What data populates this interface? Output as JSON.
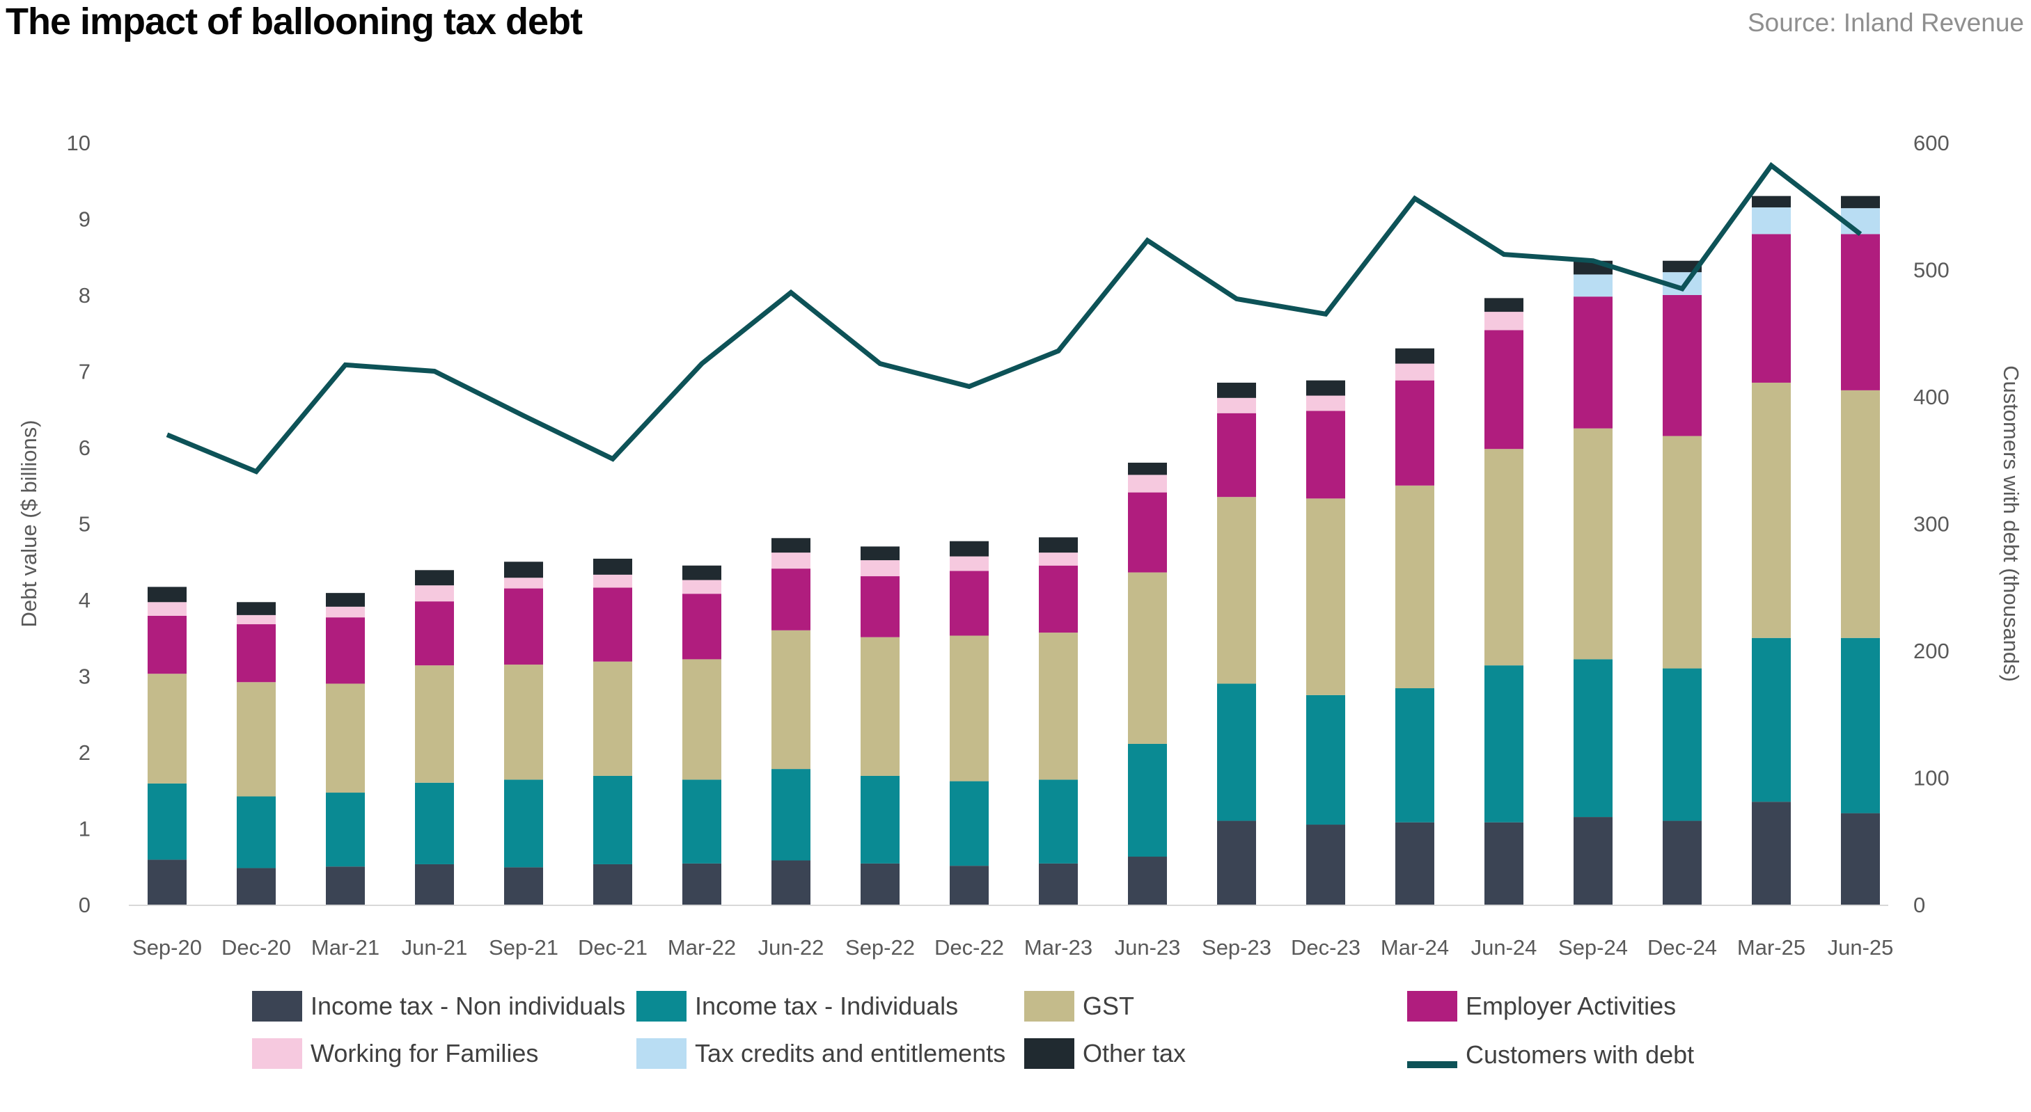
{
  "header": {
    "title": "The impact of ballooning tax debt",
    "source": "Source: Inland Revenue"
  },
  "chart_data": {
    "type": "bar",
    "subtype": "stacked-bars-with-line-overlay",
    "title": "The impact of ballooning tax debt",
    "categories": [
      "Sep-20",
      "Dec-20",
      "Mar-21",
      "Jun-21",
      "Sep-21",
      "Dec-21",
      "Mar-22",
      "Jun-22",
      "Sep-22",
      "Dec-22",
      "Mar-23",
      "Jun-23",
      "Sep-23",
      "Dec-23",
      "Mar-24",
      "Jun-24",
      "Sep-24",
      "Dec-24",
      "Mar-25",
      "Jun-25"
    ],
    "series": [
      {
        "name": "Income tax - Non individuals",
        "color": "#3b4454",
        "values": [
          0.59,
          0.48,
          0.5,
          0.53,
          0.49,
          0.53,
          0.54,
          0.58,
          0.54,
          0.51,
          0.54,
          0.63,
          1.1,
          1.05,
          1.08,
          1.08,
          1.15,
          1.1,
          1.35,
          1.2
        ]
      },
      {
        "name": "Income tax - Individuals",
        "color": "#0a8a93",
        "values": [
          1.0,
          0.94,
          0.97,
          1.07,
          1.15,
          1.16,
          1.1,
          1.2,
          1.15,
          1.11,
          1.1,
          1.48,
          1.8,
          1.7,
          1.76,
          2.06,
          2.07,
          2.0,
          2.15,
          2.3
        ]
      },
      {
        "name": "GST",
        "color": "#c4bb8b",
        "values": [
          1.44,
          1.5,
          1.43,
          1.54,
          1.51,
          1.5,
          1.58,
          1.82,
          1.82,
          1.91,
          1.93,
          2.25,
          2.45,
          2.58,
          2.66,
          2.84,
          3.03,
          3.05,
          3.35,
          3.25
        ]
      },
      {
        "name": "Employer Activities",
        "color": "#b01d7e",
        "values": [
          0.76,
          0.76,
          0.87,
          0.84,
          1.0,
          0.97,
          0.86,
          0.81,
          0.8,
          0.85,
          0.88,
          1.05,
          1.1,
          1.15,
          1.38,
          1.56,
          1.73,
          1.85,
          1.95,
          2.05
        ]
      },
      {
        "name": "Working for Families",
        "color": "#f6c9df",
        "values": [
          0.18,
          0.12,
          0.14,
          0.21,
          0.14,
          0.17,
          0.18,
          0.21,
          0.21,
          0.19,
          0.17,
          0.23,
          0.2,
          0.2,
          0.22,
          0.24,
          0,
          0,
          0,
          0
        ]
      },
      {
        "name": "Tax credits and entitlements",
        "color": "#b9ddf3",
        "values": [
          0,
          0,
          0,
          0,
          0,
          0,
          0,
          0,
          0,
          0,
          0,
          0,
          0,
          0,
          0,
          0,
          0.29,
          0.3,
          0.35,
          0.34
        ]
      },
      {
        "name": "Other tax",
        "color": "#202a30",
        "values": [
          0.2,
          0.17,
          0.18,
          0.2,
          0.21,
          0.21,
          0.19,
          0.19,
          0.18,
          0.2,
          0.2,
          0.16,
          0.2,
          0.2,
          0.2,
          0.18,
          0.18,
          0.15,
          0.15,
          0.16
        ]
      }
    ],
    "line_series": {
      "name": "Customers with debt",
      "color": "#0d5257",
      "axis": "right",
      "values": [
        370,
        341,
        425,
        420,
        385,
        351,
        426,
        482,
        426,
        408,
        436,
        523,
        477,
        465,
        556,
        512,
        507,
        485,
        582,
        528
      ]
    },
    "left_axis": {
      "label": "Debt value ($ billions)",
      "min": 0,
      "max": 10,
      "step": 1
    },
    "right_axis": {
      "label": "Customers with debt (thousands)",
      "min": 0,
      "max": 600,
      "step": 100
    },
    "grid": "off",
    "legend_position": "bottom"
  },
  "style": {
    "tick_color": "#595959",
    "axis_title_color": "#595959",
    "baseline_color": "#d8d8d8"
  }
}
